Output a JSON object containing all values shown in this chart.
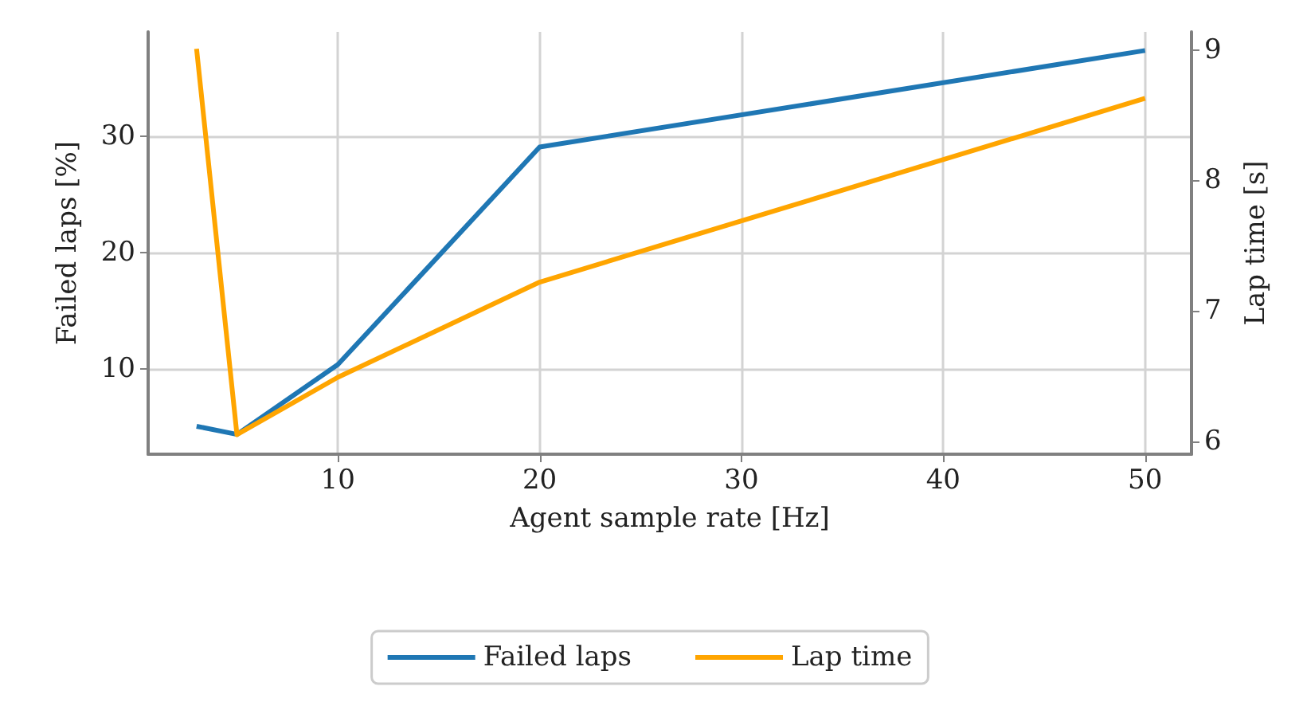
{
  "chart_data": {
    "type": "line",
    "xlabel": "Agent sample rate [Hz]",
    "ylabel": "Failed laps [%]",
    "y2label": "Lap time [s]",
    "x": [
      3,
      5,
      10,
      20,
      50
    ],
    "series": [
      {
        "name": "Failed laps",
        "color": "#1f77b4",
        "values": [
          5.1,
          4.4,
          10.4,
          29.1,
          37.4
        ]
      },
      {
        "name": "Lap time",
        "color": "#ffa500",
        "axis": "y2",
        "values": [
          9.01,
          6.05,
          6.49,
          7.22,
          8.63
        ]
      }
    ],
    "xlim": [
      0.6,
      52.3
    ],
    "xticks": [
      10,
      20,
      30,
      40,
      50
    ],
    "ylim": [
      2.7,
      39
    ],
    "yticks": [
      10,
      20,
      30
    ],
    "y2lim": [
      5.9,
      9.14
    ],
    "y2ticks": [
      6,
      7,
      8,
      9
    ],
    "grid": true,
    "legend": "bottom",
    "marker": "none",
    "line_style": "solid"
  }
}
